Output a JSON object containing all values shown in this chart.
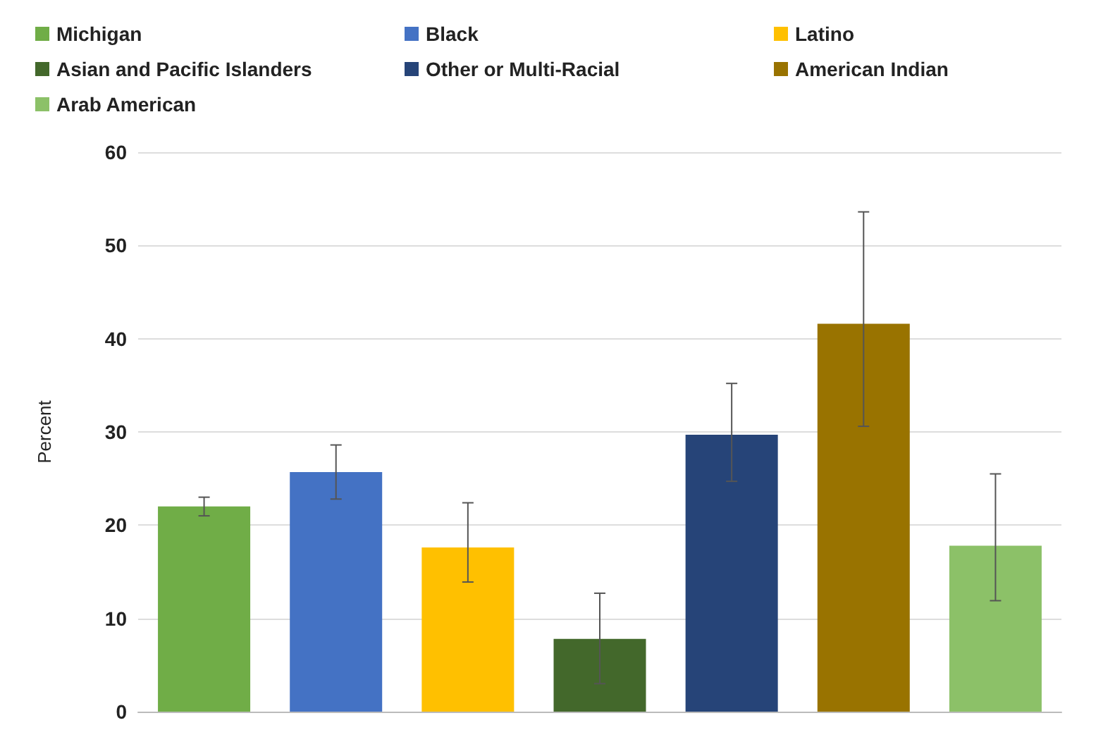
{
  "chart_data": {
    "type": "bar",
    "ylabel": "Percent",
    "categories": [
      null,
      null,
      null,
      null,
      null,
      null,
      null
    ],
    "series": [
      {
        "name": "Michigan",
        "color": "#70ad47",
        "values": [
          22.0,
          null,
          null,
          null,
          null,
          null,
          null
        ],
        "errors": [
          [
            21.0,
            23.0
          ],
          null,
          null,
          null,
          null,
          null,
          null
        ]
      },
      {
        "name": "Black",
        "color": "#4472c4",
        "values": [
          null,
          25.7,
          null,
          null,
          null,
          null,
          null
        ],
        "errors": [
          null,
          [
            22.8,
            28.6
          ],
          null,
          null,
          null,
          null,
          null
        ]
      },
      {
        "name": "Latino",
        "color": "#ffc000",
        "values": [
          null,
          null,
          17.6,
          null,
          null,
          null,
          null
        ],
        "errors": [
          null,
          null,
          [
            13.9,
            22.4
          ],
          null,
          null,
          null,
          null
        ]
      },
      {
        "name": "Asian and Pacific Islanders",
        "color": "#43682b",
        "values": [
          null,
          null,
          null,
          7.8,
          null,
          null,
          null
        ],
        "errors": [
          null,
          null,
          null,
          [
            3.0,
            12.7
          ],
          null,
          null,
          null
        ]
      },
      {
        "name": "Other or Multi-Racial",
        "color": "#264478",
        "values": [
          null,
          null,
          null,
          null,
          29.7,
          null,
          null
        ],
        "errors": [
          null,
          null,
          null,
          null,
          [
            24.7,
            35.2
          ],
          null,
          null
        ]
      },
      {
        "name": "American Indian",
        "color": "#997300",
        "values": [
          null,
          null,
          null,
          null,
          null,
          41.6,
          null
        ],
        "errors": [
          null,
          null,
          null,
          null,
          null,
          [
            30.6,
            53.6
          ],
          null
        ]
      },
      {
        "name": "Arab American",
        "color": "#8cc168",
        "values": [
          null,
          null,
          null,
          null,
          null,
          null,
          17.8
        ],
        "errors": [
          null,
          null,
          null,
          null,
          null,
          null,
          [
            11.9,
            25.5
          ]
        ]
      }
    ],
    "ylim": [
      0,
      60
    ],
    "yticks": [
      0,
      10,
      20,
      30,
      40,
      50,
      60
    ],
    "grid": "y",
    "legend": "top"
  }
}
